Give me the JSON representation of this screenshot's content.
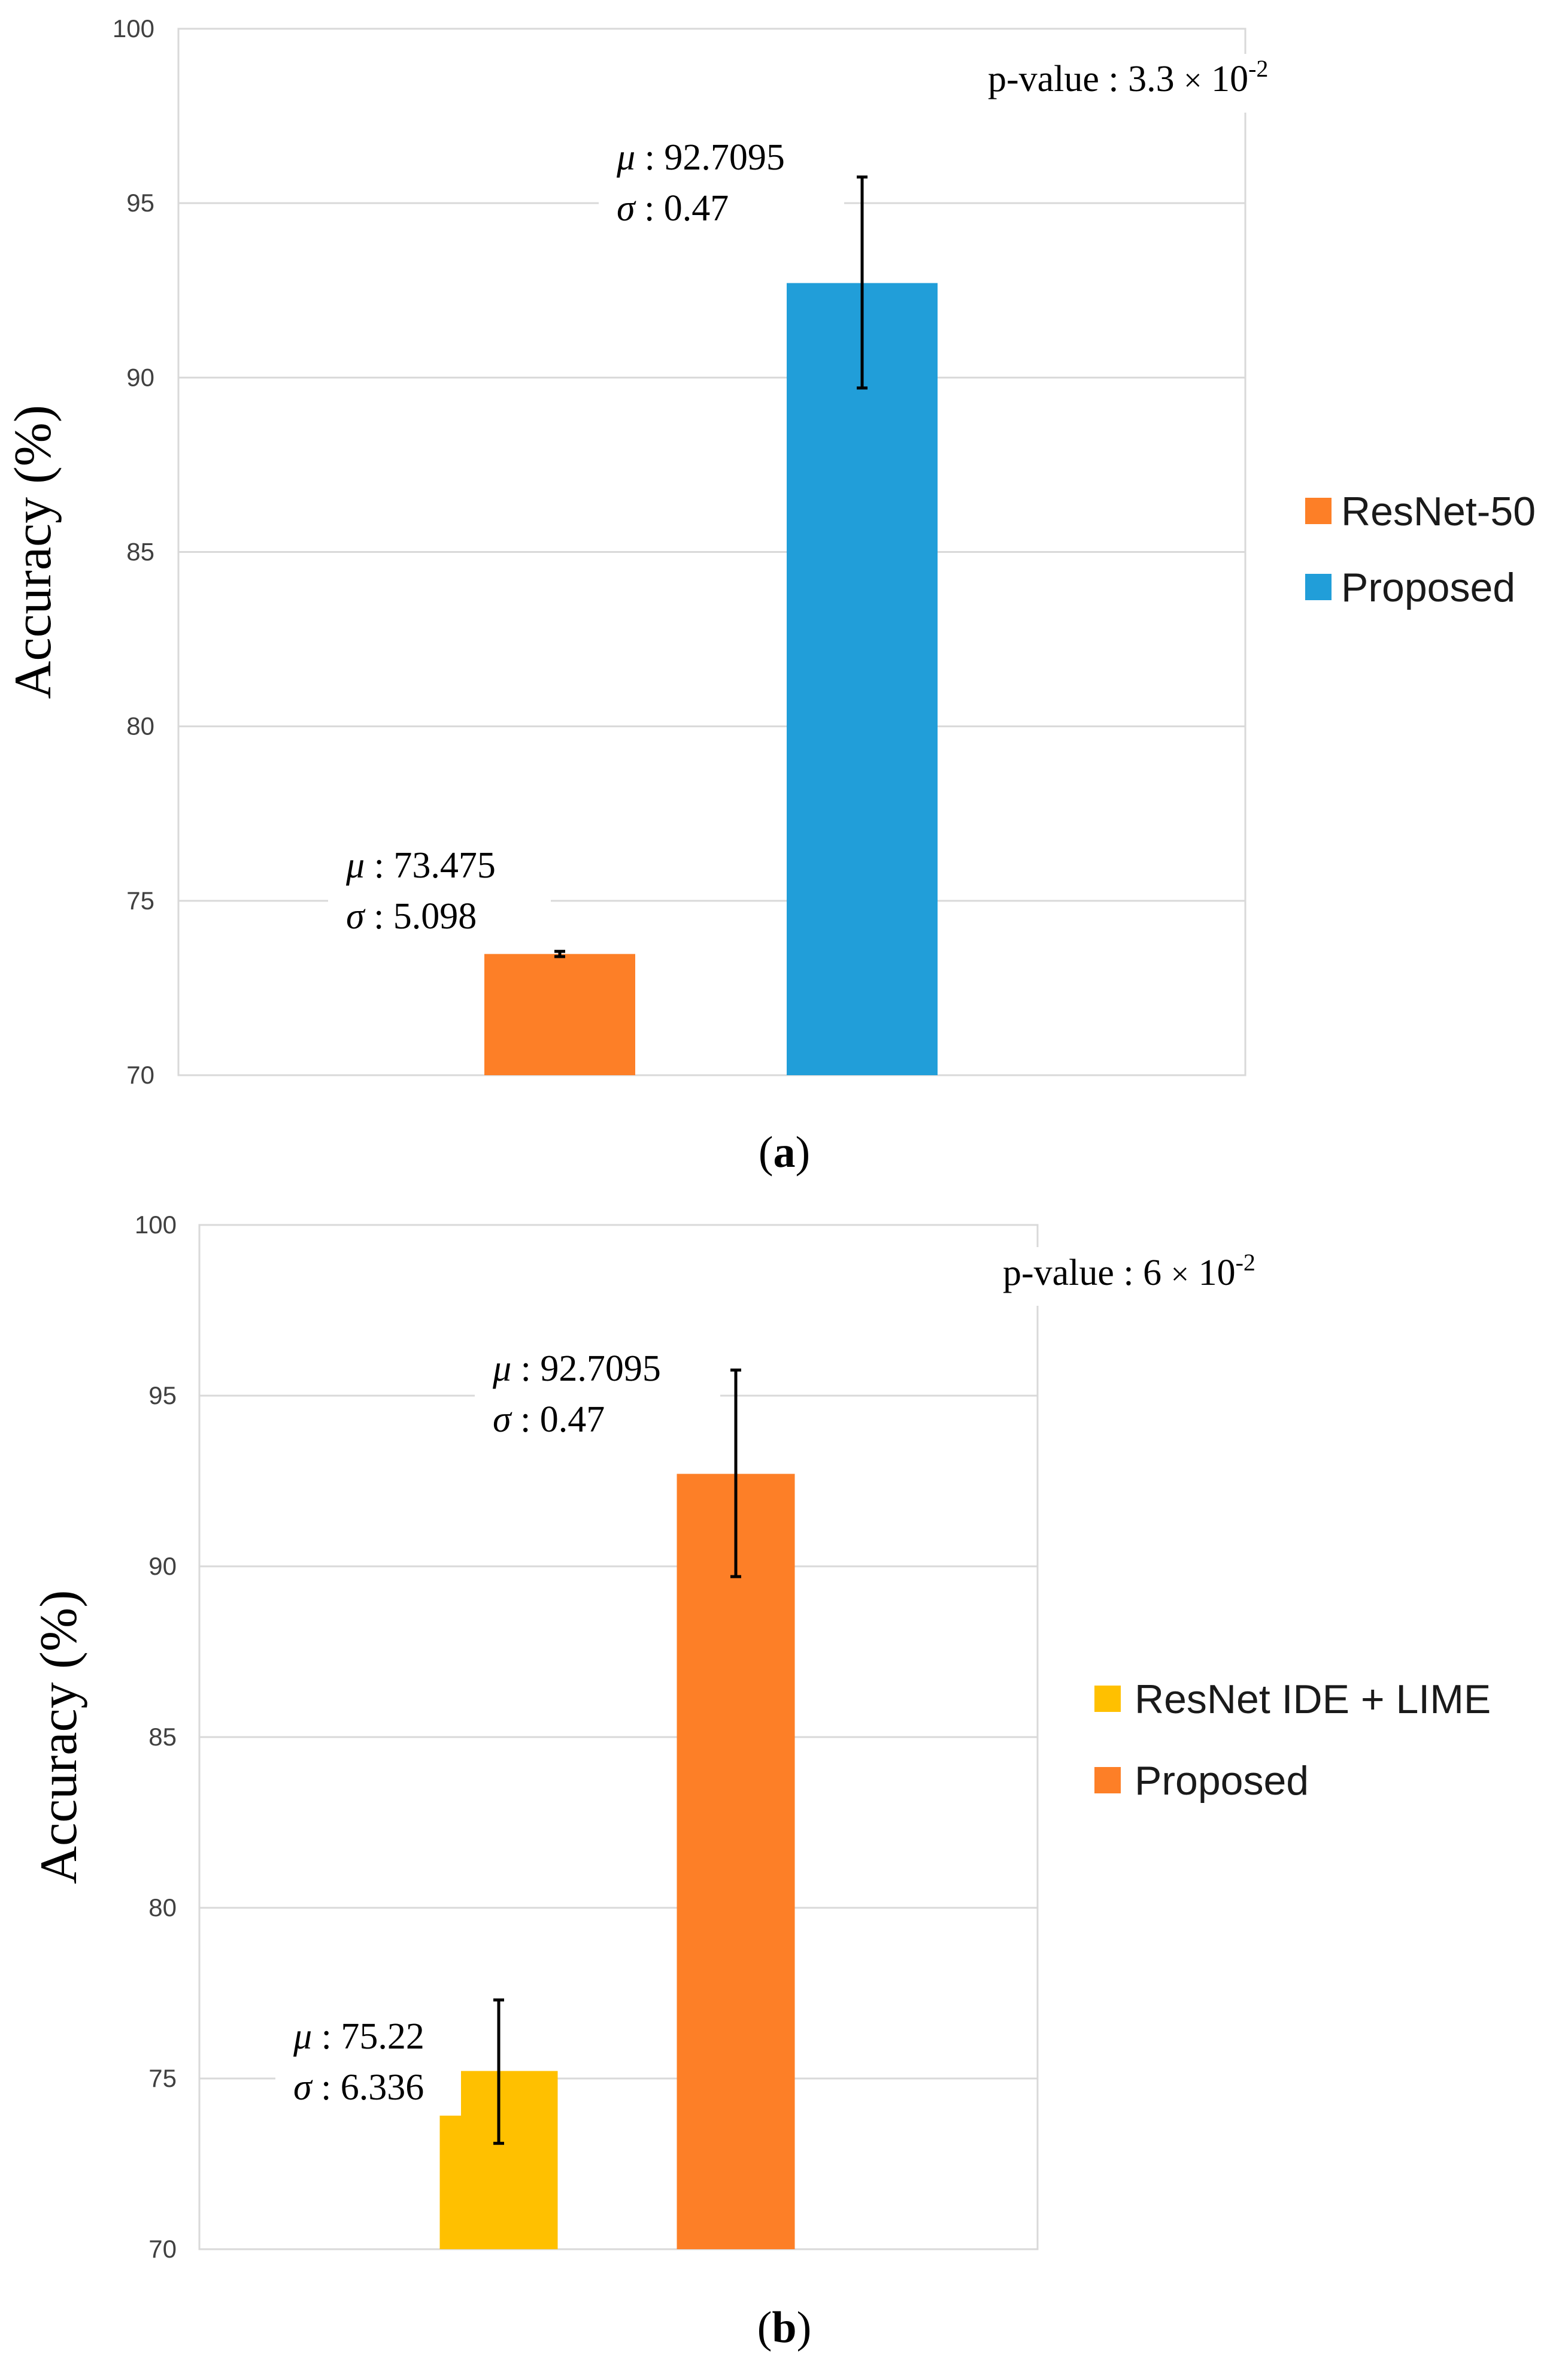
{
  "chart_data": [
    {
      "type": "bar",
      "panel_label": "a",
      "ylabel": "Accuracy (%)",
      "ylim": [
        70,
        100
      ],
      "yticks": [
        "70",
        "75",
        "80",
        "85",
        "90",
        "95",
        "100"
      ],
      "grid": true,
      "legend_position": "right",
      "categories": [
        "ResNet-50",
        "Proposed"
      ],
      "series": [
        {
          "name": "ResNet-50",
          "value": 73.475,
          "err_low": 73.4,
          "err_high": 73.55,
          "color": "#FD7F27"
        },
        {
          "name": "Proposed",
          "value": 92.7095,
          "err_low": 89.7,
          "err_high": 95.75,
          "color": "#219ED9"
        }
      ],
      "annotations": [
        {
          "mu_sym": "μ",
          "mu_text": " : 73.475",
          "sigma_sym": "σ",
          "sigma_text": " : 5.098"
        },
        {
          "mu_sym": "μ",
          "mu_text": " : 92.7095",
          "sigma_sym": "σ",
          "sigma_text": " : 0.47"
        }
      ],
      "pvalue": {
        "prefix": "p-value : 3.3 ",
        "times": "×",
        "base": " 10",
        "exponent": "-2"
      }
    },
    {
      "type": "bar",
      "panel_label": "b",
      "ylabel": "Accuracy (%)",
      "ylim": [
        70,
        100
      ],
      "yticks": [
        "70",
        "75",
        "80",
        "85",
        "90",
        "95",
        "100"
      ],
      "grid": true,
      "legend_position": "right",
      "categories": [
        "ResNet IDE + LIME",
        "Proposed"
      ],
      "series": [
        {
          "name": "ResNet IDE + LIME",
          "value": 75.22,
          "err_low": 73.1,
          "err_high": 77.3,
          "color": "#FFC000"
        },
        {
          "name": "Proposed",
          "value": 92.7095,
          "err_low": 89.7,
          "err_high": 95.75,
          "color": "#FD7F27"
        }
      ],
      "annotations": [
        {
          "mu_sym": "μ",
          "mu_text": " : 75.22",
          "sigma_sym": "σ",
          "sigma_text": " : 6.336"
        },
        {
          "mu_sym": "μ",
          "mu_text": " : 92.7095",
          "sigma_sym": "σ",
          "sigma_text": " : 0.47"
        }
      ],
      "pvalue": {
        "prefix": "p-value :  6 ",
        "times": "×",
        "base": " 10",
        "exponent": "-2"
      }
    }
  ]
}
